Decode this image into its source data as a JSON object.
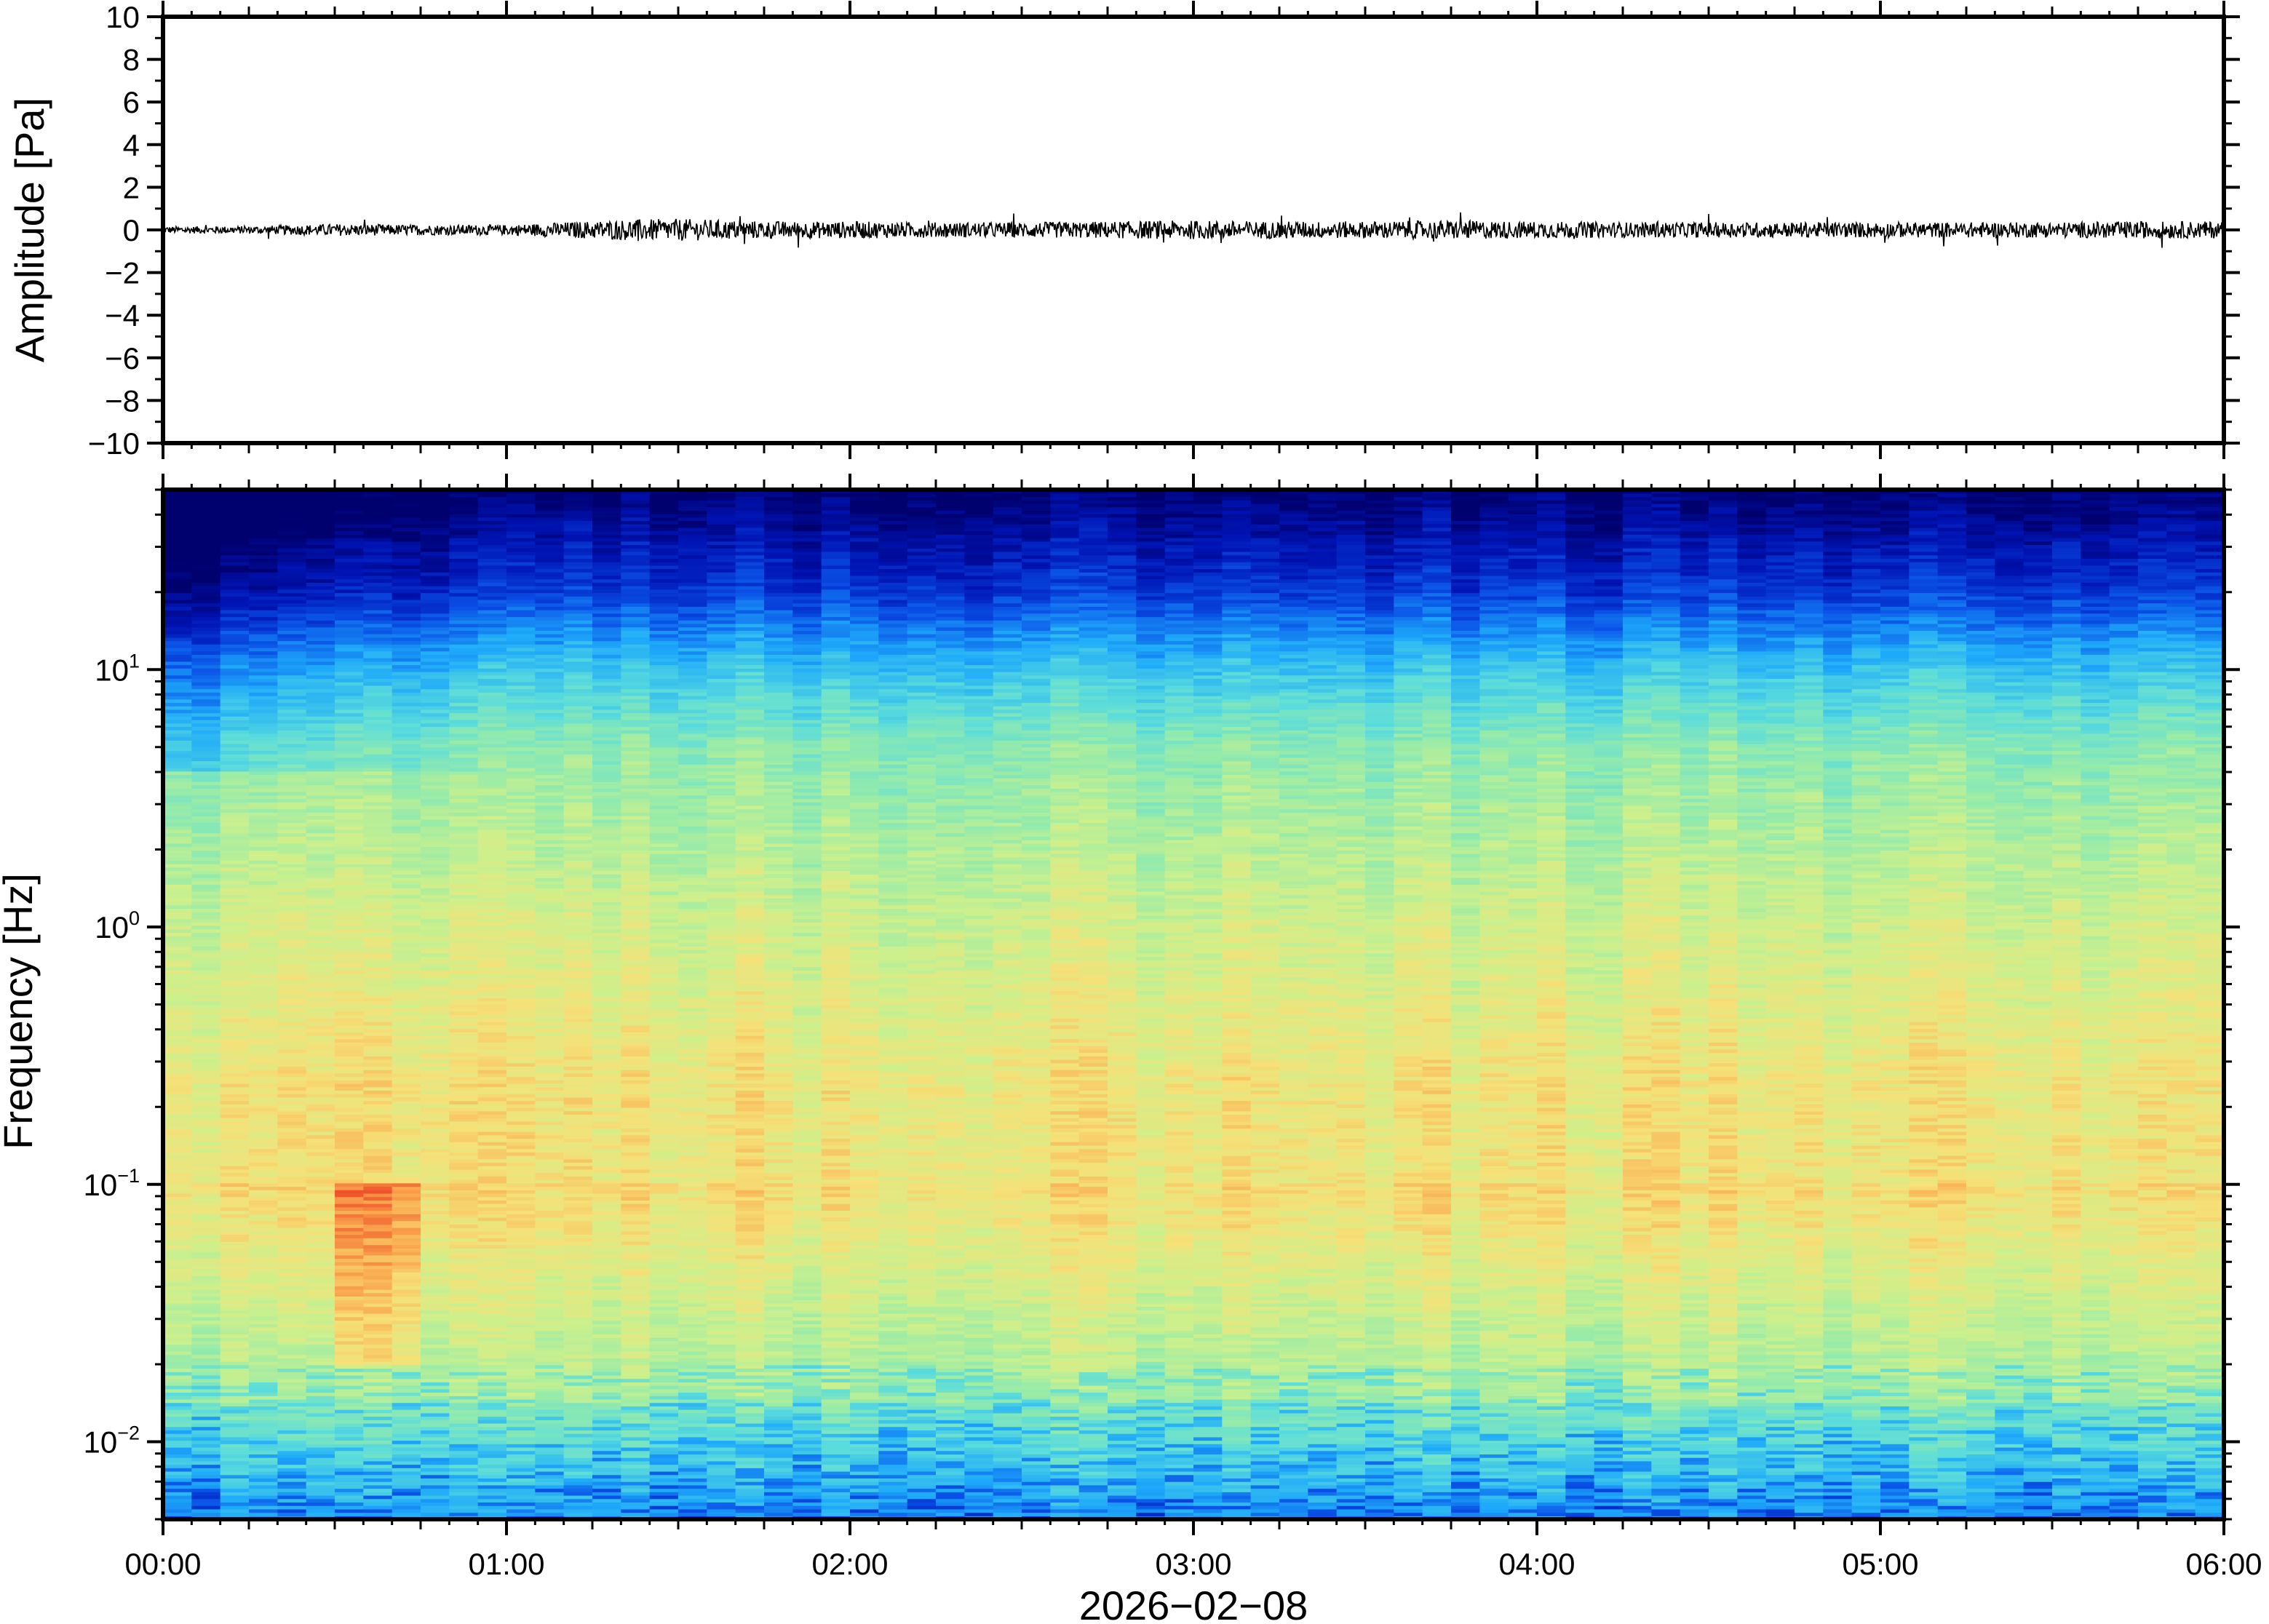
{
  "chart_data": [
    {
      "type": "line",
      "title": "",
      "xlabel": "",
      "ylabel": "Amplitude [Pa]",
      "ylim": [
        -10,
        10
      ],
      "yticks": [
        10,
        8,
        6,
        4,
        2,
        0,
        -2,
        -4,
        -6,
        -8,
        -10
      ],
      "ytick_labels": [
        "10",
        "8",
        "6",
        "4",
        "2",
        "0",
        "−2",
        "−4",
        "−6",
        "−8",
        "−10"
      ],
      "xlim": [
        "00:00",
        "06:00"
      ],
      "series": [
        {
          "color": "#000000",
          "x_minutes": [
            0,
            15,
            30,
            45,
            60,
            70,
            80,
            90,
            100,
            110,
            120,
            135,
            150,
            165,
            180,
            195,
            210,
            225,
            240,
            255,
            270,
            285,
            300,
            315,
            330,
            345,
            360
          ],
          "envelope_pa": [
            0.2,
            0.22,
            0.35,
            0.3,
            0.3,
            0.45,
            0.6,
            0.65,
            0.55,
            0.5,
            0.5,
            0.45,
            0.45,
            0.5,
            0.55,
            0.5,
            0.5,
            0.55,
            0.5,
            0.45,
            0.45,
            0.45,
            0.45,
            0.45,
            0.45,
            0.5,
            0.5
          ]
        }
      ]
    },
    {
      "type": "heatmap",
      "title": "",
      "xlabel": "2026−02−08",
      "ylabel": "Frequency [Hz]",
      "y_scale": "log",
      "ylim": [
        0.005,
        50
      ],
      "yticks": [
        0.01,
        0.1,
        1,
        10
      ],
      "ytick_labels": [
        {
          "base": "10",
          "exp": "−2"
        },
        {
          "base": "10",
          "exp": "−1"
        },
        {
          "base": "10",
          "exp": "0"
        },
        {
          "base": "10",
          "exp": "1"
        }
      ],
      "xlim": [
        "00:00",
        "06:00"
      ],
      "xticks_minutes": [
        0,
        60,
        120,
        180,
        240,
        300,
        360
      ],
      "xtick_labels": [
        "00:00",
        "01:00",
        "02:00",
        "03:00",
        "04:00",
        "05:00",
        "06:00"
      ],
      "colormap": "jet",
      "time_bins": 72,
      "description_of_levels": "relative power, 0 = dark blue, 1 = red"
    }
  ]
}
